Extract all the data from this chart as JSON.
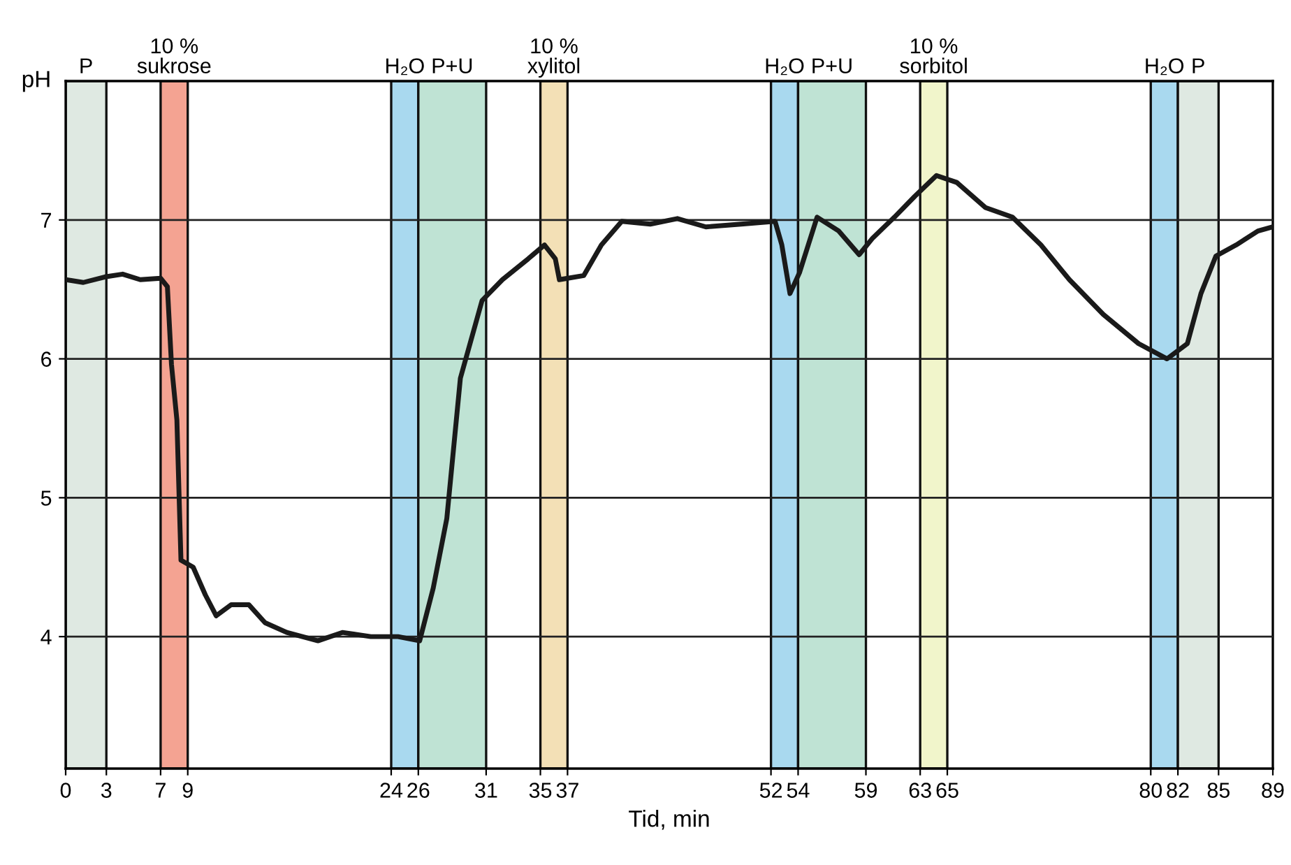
{
  "chart_data": {
    "type": "line",
    "xlabel": "Tid, min",
    "ylabel": "pH",
    "xlim": [
      0,
      89
    ],
    "xticks": [
      0,
      3,
      7,
      9,
      24,
      26,
      31,
      35,
      37,
      52,
      54,
      59,
      63,
      65,
      80,
      82,
      85,
      89
    ],
    "ylim": [
      3.05,
      8.0
    ],
    "yticks": [
      4,
      5,
      6,
      7
    ],
    "grid": "y",
    "legend": false,
    "marker": "none",
    "line_style": "solid",
    "series": [
      {
        "color": "#1a1a1a",
        "x": [
          0,
          1.3,
          2.9,
          4.2,
          5.5,
          7.0,
          7.5,
          7.8,
          8.2,
          8.5,
          9.4,
          10.3,
          11.1,
          12.2,
          13.5,
          14.7,
          16.3,
          18.6,
          20.4,
          22.5,
          24.5,
          26.1,
          27.1,
          28.1,
          29.1,
          30.7,
          32.2,
          34.1,
          35.3,
          36.1,
          36.4,
          38.2,
          39.5,
          41.0,
          43.1,
          45.1,
          47.2,
          49.8,
          52.3,
          52.8,
          53.4,
          54.1,
          55.4,
          57.0,
          58.5,
          59.5,
          61.1,
          62.6,
          64.2,
          65.7,
          67.8,
          69.8,
          71.9,
          74.0,
          76.5,
          79.1,
          81.2,
          82.7,
          83.7,
          84.8,
          86.3,
          87.9,
          89
        ],
        "values": [
          6.57,
          6.55,
          6.59,
          6.61,
          6.57,
          6.58,
          6.52,
          5.96,
          5.56,
          4.55,
          4.5,
          4.3,
          4.15,
          4.23,
          4.23,
          4.1,
          4.03,
          3.97,
          4.03,
          4.0,
          4.0,
          3.97,
          4.35,
          4.85,
          5.86,
          6.42,
          6.57,
          6.72,
          6.82,
          6.72,
          6.57,
          6.6,
          6.82,
          6.99,
          6.97,
          7.01,
          6.95,
          6.97,
          6.99,
          6.82,
          6.47,
          6.62,
          7.02,
          6.92,
          6.75,
          6.87,
          7.02,
          7.17,
          7.32,
          7.27,
          7.09,
          7.02,
          6.82,
          6.57,
          6.32,
          6.11,
          6.0,
          6.11,
          6.47,
          6.74,
          6.82,
          6.92,
          6.95
        ]
      }
    ],
    "bands": [
      {
        "axis": "x",
        "from": 0,
        "to": 3,
        "label": "P",
        "color": "#dfe9e2"
      },
      {
        "axis": "x",
        "from": 7,
        "to": 9,
        "label": "10 %\nsukrose",
        "color": "#f4a392"
      },
      {
        "axis": "x",
        "from": 24,
        "to": 26,
        "label": "H₂O",
        "color": "#a9d9ef"
      },
      {
        "axis": "x",
        "from": 26,
        "to": 31,
        "label": "P+U",
        "color": "#bfe3d4"
      },
      {
        "axis": "x",
        "from": 35,
        "to": 37,
        "label": "10 %\nxylitol",
        "color": "#f3e0b6"
      },
      {
        "axis": "x",
        "from": 52,
        "to": 54,
        "label": "H₂O",
        "color": "#a9d9ef"
      },
      {
        "axis": "x",
        "from": 54,
        "to": 59,
        "label": "P+U",
        "color": "#bfe3d4"
      },
      {
        "axis": "x",
        "from": 63,
        "to": 65,
        "label": "10 %\nsorbitol",
        "color": "#f1f5cb"
      },
      {
        "axis": "x",
        "from": 80,
        "to": 82,
        "label": "H₂O",
        "color": "#a9d9ef"
      },
      {
        "axis": "x",
        "from": 82,
        "to": 85,
        "label": "P",
        "color": "#dfe9e2"
      }
    ]
  }
}
